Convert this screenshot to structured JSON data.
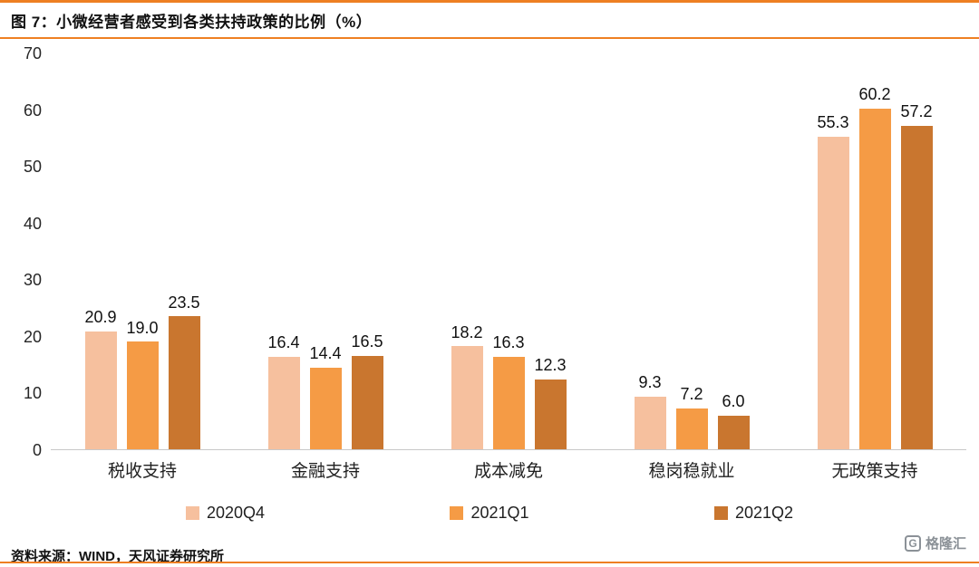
{
  "page": {
    "title": "图 7：小微经营者感受到各类扶持政策的比例（%）",
    "source": "资料来源：WIND，天风证券研究所",
    "accent_color": "#ee7f22",
    "logo": {
      "icon": "G",
      "text": "格隆汇"
    }
  },
  "chart_data": {
    "type": "bar",
    "title": "小微经营者感受到各类扶持政策的比例（%）",
    "categories": [
      "税收支持",
      "金融支持",
      "成本减免",
      "稳岗稳就业",
      "无政策支持"
    ],
    "series": [
      {
        "name": "2020Q4",
        "color": "#f6c09e",
        "values": [
          20.9,
          16.4,
          18.2,
          9.3,
          55.3
        ]
      },
      {
        "name": "2021Q1",
        "color": "#f59b45",
        "values": [
          19.0,
          14.4,
          16.3,
          7.2,
          60.2
        ]
      },
      {
        "name": "2021Q2",
        "color": "#c9762f",
        "values": [
          23.5,
          16.5,
          12.3,
          6.0,
          57.2
        ]
      }
    ],
    "ylim": [
      0,
      70
    ],
    "yticks": [
      0,
      10,
      20,
      30,
      40,
      50,
      60,
      70
    ],
    "value_label_decimals": 1,
    "grid": false,
    "legend_position": "bottom",
    "xlabel": "",
    "ylabel": ""
  }
}
